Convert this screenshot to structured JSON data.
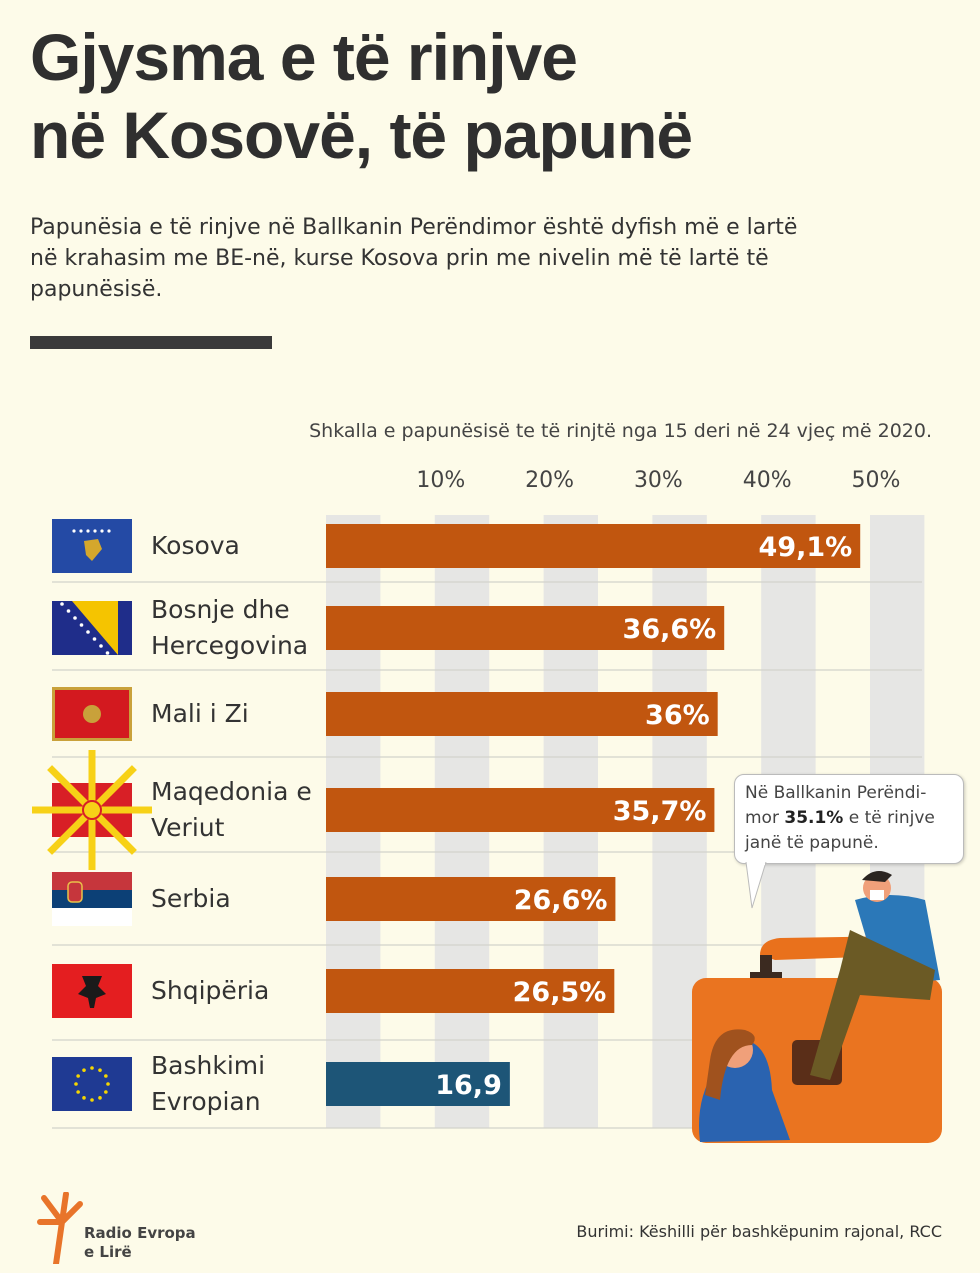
{
  "title_line1": "Gjysma e të rinjve",
  "title_line2": "në Kosovë, të papunë",
  "subtitle": "Papunësia e të rinjve në Ballkanin Perëndimor është dyfish më e lartë në krahasim me BE-në, kurse Kosova prin me nivelin më të lartë të papunësisë.",
  "callout": {
    "pre": "Në Ballkanin Perëndi-mor ",
    "value": "35.1%",
    "post": " e të rinjve janë  të papunë."
  },
  "source": "Burimi: Këshilli për bashkëpunim rajonal, RCC",
  "logo_text": [
    "Radio Evropa",
    "e Lirë"
  ],
  "colors": {
    "background": "#fdfbe9",
    "bar": "#c1560f",
    "bar_eu": "#1d5577",
    "grid_band": "#e6e6e4"
  },
  "chart_data": {
    "type": "bar",
    "orientation": "horizontal",
    "title": "Shkalla e papunësisë te të rinjtë nga 15 deri në 24 vjeç më 2020.",
    "categories": [
      "Kosova",
      "Bosnje dhe Hercegovina",
      "Mali i Zi",
      "Maqedonia e Veriut",
      "Serbia",
      "Shqipëria",
      "Bashkimi Evropian"
    ],
    "category_lines": [
      [
        "Kosova"
      ],
      [
        "Bosnje dhe",
        "Hercegovina"
      ],
      [
        "Mali i Zi"
      ],
      [
        "Maqedonia e",
        "Veriut"
      ],
      [
        "Serbia"
      ],
      [
        "Shqipëria"
      ],
      [
        "Bashkimi",
        "Evropian"
      ]
    ],
    "flags": [
      "kosovo-flag-icon",
      "bosnia-flag-icon",
      "montenegro-flag-icon",
      "north-macedonia-flag-icon",
      "serbia-flag-icon",
      "albania-flag-icon",
      "eu-flag-icon"
    ],
    "values": [
      49.1,
      36.6,
      36,
      35.7,
      26.6,
      26.5,
      16.9
    ],
    "data_labels": [
      "49,1%",
      "36,6%",
      "36%",
      "35,7%",
      "26,6%",
      "26,5%",
      "16,9"
    ],
    "xticks": [
      10,
      20,
      30,
      40,
      50
    ],
    "xtick_labels": [
      "10%",
      "20%",
      "30%",
      "40%",
      "50%"
    ],
    "xlim": [
      0,
      55
    ],
    "grid": true
  }
}
